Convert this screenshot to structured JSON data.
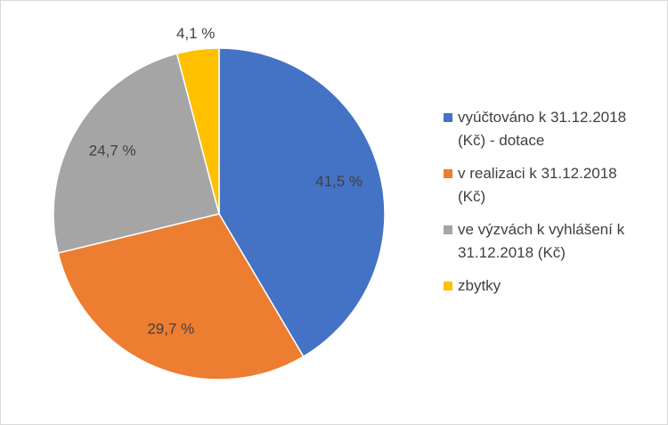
{
  "chart_data": {
    "type": "pie",
    "categories": [
      "vyúčtováno k 31.12.2018\n(Kč) - dotace",
      "v realizaci k 31.12.2018\n(Kč)",
      "ve výzvách k vyhlášení k\n31.12.2018 (Kč)",
      "zbytky"
    ],
    "values": [
      41.5,
      29.7,
      24.7,
      4.1
    ],
    "data_labels": [
      "41,5 %",
      "29,7 %",
      "24,7 %",
      "4,1 %"
    ],
    "colors": [
      "#4472c4",
      "#ed7d31",
      "#a5a5a5",
      "#ffc000"
    ],
    "legend_position": "right",
    "start_angle_deg": 0,
    "direction": "clockwise",
    "title": ""
  }
}
